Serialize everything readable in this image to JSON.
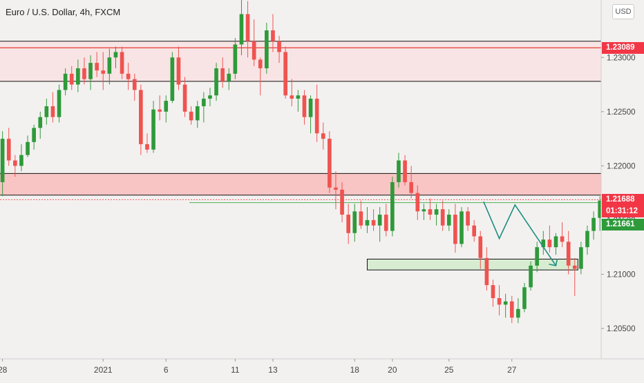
{
  "header": {
    "title": "Euro / U.S. Dollar, 4h, FXCM",
    "currency_button": "USD"
  },
  "colors": {
    "up": "#26a69a",
    "up_body": "#2e9a3a",
    "down": "#ef5350",
    "zone": "#f9c4c4",
    "zone_light": "#f8e4e4",
    "demand": "#d8ecd2",
    "arrow": "#1b8f80",
    "bg": "#f3f1f0"
  },
  "chart_data": {
    "type": "candlestick",
    "instrument": "EUR/USD",
    "timeframe": "4h",
    "y_axis": {
      "ticks": [
        1.23,
        1.225,
        1.22,
        1.215,
        1.21,
        1.205
      ],
      "tick_labels": [
        "1.23000",
        "1.22500",
        "1.22000",
        "1.21500",
        "1.21000",
        "1.20500"
      ],
      "ylim": [
        1.2022,
        1.2353
      ]
    },
    "x_axis": {
      "ticks": [
        0,
        16,
        26,
        37,
        43,
        56,
        62,
        71,
        81,
        90
      ],
      "tick_labels": [
        "28",
        "2021",
        "6",
        "11",
        "13",
        "18",
        "20",
        "25",
        "27",
        ""
      ],
      "xlim": [
        -0.4,
        95.2
      ]
    },
    "price_tags": [
      {
        "label": "1.23089",
        "price": 1.23089,
        "color": "#f23645"
      },
      {
        "label": "1.21688",
        "price": 1.21688,
        "color": "#f23645"
      },
      {
        "label": "01:31:12",
        "price": 1.21525,
        "color": "#f23645"
      },
      {
        "label": "1.21661",
        "price": 1.21661,
        "color": "#2e9a3a"
      }
    ],
    "zones": [
      {
        "kind": "supply",
        "from": 1.2278,
        "to": 1.2315
      },
      {
        "kind": "resistance",
        "from": 1.2173,
        "to": 1.2193
      },
      {
        "kind": "demand",
        "from": 1.2104,
        "to": 1.2114,
        "x_from": 58,
        "x_to": 91.5
      }
    ],
    "levels": [
      {
        "price": 1.21661,
        "x_from": 29.7
      }
    ],
    "projection": {
      "x": [
        76.5,
        79,
        81.5,
        88
      ],
      "y": [
        1.2167,
        1.2133,
        1.2164,
        1.2108
      ]
    },
    "candles": [
      [
        1.2185,
        1.2232,
        1.2172,
        1.2225
      ],
      [
        1.2225,
        1.2235,
        1.22,
        1.2205
      ],
      [
        1.2205,
        1.221,
        1.219,
        1.22
      ],
      [
        1.22,
        1.222,
        1.2195,
        1.221
      ],
      [
        1.221,
        1.2228,
        1.2208,
        1.2222
      ],
      [
        1.2222,
        1.2238,
        1.2215,
        1.2235
      ],
      [
        1.2235,
        1.225,
        1.2225,
        1.2245
      ],
      [
        1.2245,
        1.2262,
        1.2238,
        1.2255
      ],
      [
        1.2255,
        1.2268,
        1.224,
        1.2245
      ],
      [
        1.2245,
        1.2275,
        1.224,
        1.227
      ],
      [
        1.227,
        1.229,
        1.2265,
        1.2285
      ],
      [
        1.2285,
        1.2292,
        1.227,
        1.2275
      ],
      [
        1.2275,
        1.2298,
        1.2268,
        1.229
      ],
      [
        1.229,
        1.23,
        1.2275,
        1.228
      ],
      [
        1.228,
        1.2302,
        1.227,
        1.2295
      ],
      [
        1.2295,
        1.2305,
        1.2282,
        1.2288
      ],
      [
        1.2288,
        1.2305,
        1.227,
        1.2285
      ],
      [
        1.2285,
        1.2308,
        1.2275,
        1.23
      ],
      [
        1.23,
        1.231,
        1.229,
        1.2305
      ],
      [
        1.2305,
        1.231,
        1.228,
        1.2285
      ],
      [
        1.2285,
        1.2295,
        1.227,
        1.228
      ],
      [
        1.228,
        1.2285,
        1.226,
        1.227
      ],
      [
        1.227,
        1.2275,
        1.221,
        1.222
      ],
      [
        1.222,
        1.223,
        1.2212,
        1.2215
      ],
      [
        1.2215,
        1.226,
        1.2212,
        1.2252
      ],
      [
        1.2252,
        1.2265,
        1.2242,
        1.225
      ],
      [
        1.225,
        1.2265,
        1.224,
        1.226
      ],
      [
        1.226,
        1.2305,
        1.2258,
        1.23
      ],
      [
        1.23,
        1.231,
        1.227,
        1.2275
      ],
      [
        1.2275,
        1.2282,
        1.2245,
        1.225
      ],
      [
        1.225,
        1.2255,
        1.2238,
        1.2242
      ],
      [
        1.2242,
        1.226,
        1.2235,
        1.2255
      ],
      [
        1.2255,
        1.2268,
        1.224,
        1.2262
      ],
      [
        1.2262,
        1.2272,
        1.2255,
        1.2265
      ],
      [
        1.2265,
        1.2295,
        1.226,
        1.229
      ],
      [
        1.229,
        1.23,
        1.2272,
        1.2278
      ],
      [
        1.2278,
        1.229,
        1.227,
        1.2285
      ],
      [
        1.2285,
        1.2318,
        1.228,
        1.2312
      ],
      [
        1.2312,
        1.2355,
        1.2302,
        1.234
      ],
      [
        1.234,
        1.2352,
        1.23,
        1.2315
      ],
      [
        1.2315,
        1.2335,
        1.2292,
        1.2298
      ],
      [
        1.2298,
        1.23,
        1.2265,
        1.229
      ],
      [
        1.229,
        1.2332,
        1.2285,
        1.2325
      ],
      [
        1.2325,
        1.234,
        1.2305,
        1.2315
      ],
      [
        1.2315,
        1.232,
        1.2295,
        1.2305
      ],
      [
        1.2305,
        1.231,
        1.2262,
        1.2265
      ],
      [
        1.2265,
        1.228,
        1.2255,
        1.2262
      ],
      [
        1.2262,
        1.227,
        1.225,
        1.2265
      ],
      [
        1.2265,
        1.227,
        1.2238,
        1.2245
      ],
      [
        1.2245,
        1.2265,
        1.223,
        1.2262
      ],
      [
        1.2262,
        1.2275,
        1.2222,
        1.223
      ],
      [
        1.223,
        1.224,
        1.2215,
        1.2225
      ],
      [
        1.2225,
        1.2232,
        1.2175,
        1.218
      ],
      [
        1.218,
        1.2195,
        1.216,
        1.2178
      ],
      [
        1.2178,
        1.2185,
        1.2148,
        1.2155
      ],
      [
        1.2155,
        1.2165,
        1.2128,
        1.2138
      ],
      [
        1.2138,
        1.2165,
        1.213,
        1.2158
      ],
      [
        1.2158,
        1.2168,
        1.2142,
        1.2145
      ],
      [
        1.2145,
        1.2162,
        1.2138,
        1.215
      ],
      [
        1.215,
        1.216,
        1.214,
        1.2145
      ],
      [
        1.2145,
        1.2162,
        1.213,
        1.2155
      ],
      [
        1.2155,
        1.2165,
        1.2135,
        1.214
      ],
      [
        1.214,
        1.219,
        1.2135,
        1.2185
      ],
      [
        1.2185,
        1.2212,
        1.218,
        1.2205
      ],
      [
        1.2205,
        1.221,
        1.2182,
        1.2185
      ],
      [
        1.2185,
        1.22,
        1.217,
        1.2175
      ],
      [
        1.2175,
        1.2182,
        1.215,
        1.2158
      ],
      [
        1.2158,
        1.2165,
        1.215,
        1.216
      ],
      [
        1.216,
        1.217,
        1.215,
        1.2155
      ],
      [
        1.2155,
        1.2165,
        1.2145,
        1.216
      ],
      [
        1.216,
        1.2168,
        1.214,
        1.2145
      ],
      [
        1.2145,
        1.216,
        1.214,
        1.2155
      ],
      [
        1.2155,
        1.2165,
        1.212,
        1.2128
      ],
      [
        1.2128,
        1.2162,
        1.2125,
        1.2158
      ],
      [
        1.2158,
        1.2162,
        1.214,
        1.2145
      ],
      [
        1.2145,
        1.215,
        1.213,
        1.2135
      ],
      [
        1.2135,
        1.214,
        1.2105,
        1.2115
      ],
      [
        1.2115,
        1.2125,
        1.2085,
        1.209
      ],
      [
        1.209,
        1.2095,
        1.207,
        1.2078
      ],
      [
        1.2078,
        1.209,
        1.2062,
        1.2072
      ],
      [
        1.2072,
        1.2082,
        1.206,
        1.2075
      ],
      [
        1.2075,
        1.208,
        1.2055,
        1.206
      ],
      [
        1.206,
        1.2078,
        1.2055,
        1.2068
      ],
      [
        1.2068,
        1.2092,
        1.2065,
        1.2088
      ],
      [
        1.2088,
        1.2112,
        1.2085,
        1.2108
      ],
      [
        1.2108,
        1.213,
        1.2102,
        1.2125
      ],
      [
        1.2125,
        1.214,
        1.2118,
        1.2132
      ],
      [
        1.2132,
        1.2145,
        1.212,
        1.2125
      ],
      [
        1.2125,
        1.2138,
        1.2118,
        1.2135
      ],
      [
        1.2135,
        1.2148,
        1.2125,
        1.213
      ],
      [
        1.213,
        1.214,
        1.21,
        1.2108
      ],
      [
        1.2108,
        1.2115,
        1.208,
        1.2105
      ],
      [
        1.2105,
        1.213,
        1.21,
        1.2125
      ],
      [
        1.2125,
        1.2145,
        1.2118,
        1.214
      ],
      [
        1.214,
        1.2158,
        1.2132,
        1.2152
      ],
      [
        1.2152,
        1.2172,
        1.214,
        1.2168
      ],
      [
        1.2168,
        1.2178,
        1.216,
        1.2172
      ],
      [
        1.2172,
        1.2185,
        1.2155,
        1.217
      ],
      [
        1.217,
        1.218,
        1.216,
        1.2166
      ]
    ]
  }
}
